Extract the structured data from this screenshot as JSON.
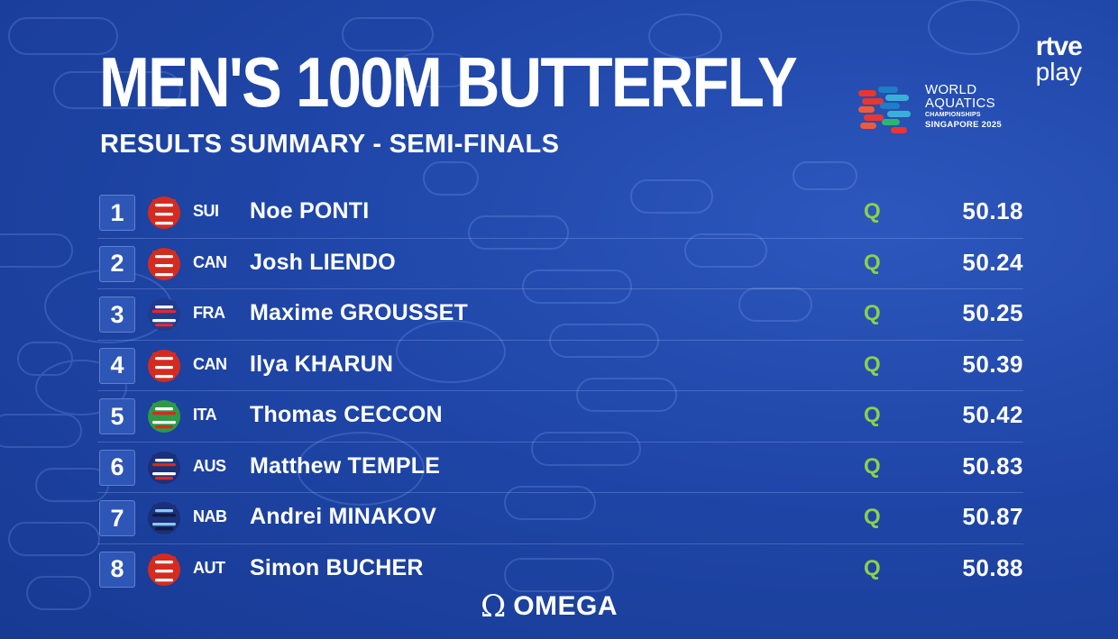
{
  "header": {
    "title": "MEN'S 100M BUTTERFLY",
    "subtitle": "RESULTS SUMMARY - SEMI-FINALS"
  },
  "broadcaster": {
    "line1": "rtve",
    "line2": "play"
  },
  "event": {
    "line1": "WORLD",
    "line2": "AQUATICS",
    "line3": "CHAMPIONSHIPS",
    "line4": "SINGAPORE 2025"
  },
  "results": [
    {
      "rank": "1",
      "country": "SUI",
      "name": "Noe PONTI",
      "qualification": "Q",
      "time": "50.18",
      "flag_colors": [
        "#d52b1e",
        "#ffffff"
      ]
    },
    {
      "rank": "2",
      "country": "CAN",
      "name": "Josh LIENDO",
      "qualification": "Q",
      "time": "50.24",
      "flag_colors": [
        "#d52b1e",
        "#ffffff"
      ]
    },
    {
      "rank": "3",
      "country": "FRA",
      "name": "Maxime GROUSSET",
      "qualification": "Q",
      "time": "50.25",
      "flag_colors": [
        "#1f3c8f",
        "#ffffff",
        "#e1283a"
      ]
    },
    {
      "rank": "4",
      "country": "CAN",
      "name": "Ilya KHARUN",
      "qualification": "Q",
      "time": "50.39",
      "flag_colors": [
        "#d52b1e",
        "#ffffff"
      ]
    },
    {
      "rank": "5",
      "country": "ITA",
      "name": "Thomas CECCON",
      "qualification": "Q",
      "time": "50.42",
      "flag_colors": [
        "#2f9a46",
        "#ffffff",
        "#d52b1e"
      ]
    },
    {
      "rank": "6",
      "country": "AUS",
      "name": "Matthew TEMPLE",
      "qualification": "Q",
      "time": "50.83",
      "flag_colors": [
        "#1b2f7a",
        "#ffffff",
        "#d52b1e"
      ]
    },
    {
      "rank": "7",
      "country": "NAB",
      "name": "Andrei MINAKOV",
      "qualification": "Q",
      "time": "50.87",
      "flag_colors": [
        "#1b2f7a",
        "#8cc8ef",
        "#0f1c44"
      ]
    },
    {
      "rank": "8",
      "country": "AUT",
      "name": "Simon BUCHER",
      "qualification": "Q",
      "time": "50.88",
      "flag_colors": [
        "#d52b1e",
        "#ffffff"
      ]
    }
  ],
  "sponsor": {
    "icon": "omega-icon",
    "name": "OMEGA"
  },
  "colors": {
    "background": "#1f46a8",
    "qualified": "#8ad14b",
    "rank_box": "#2e56b6",
    "text": "#ffffff"
  }
}
